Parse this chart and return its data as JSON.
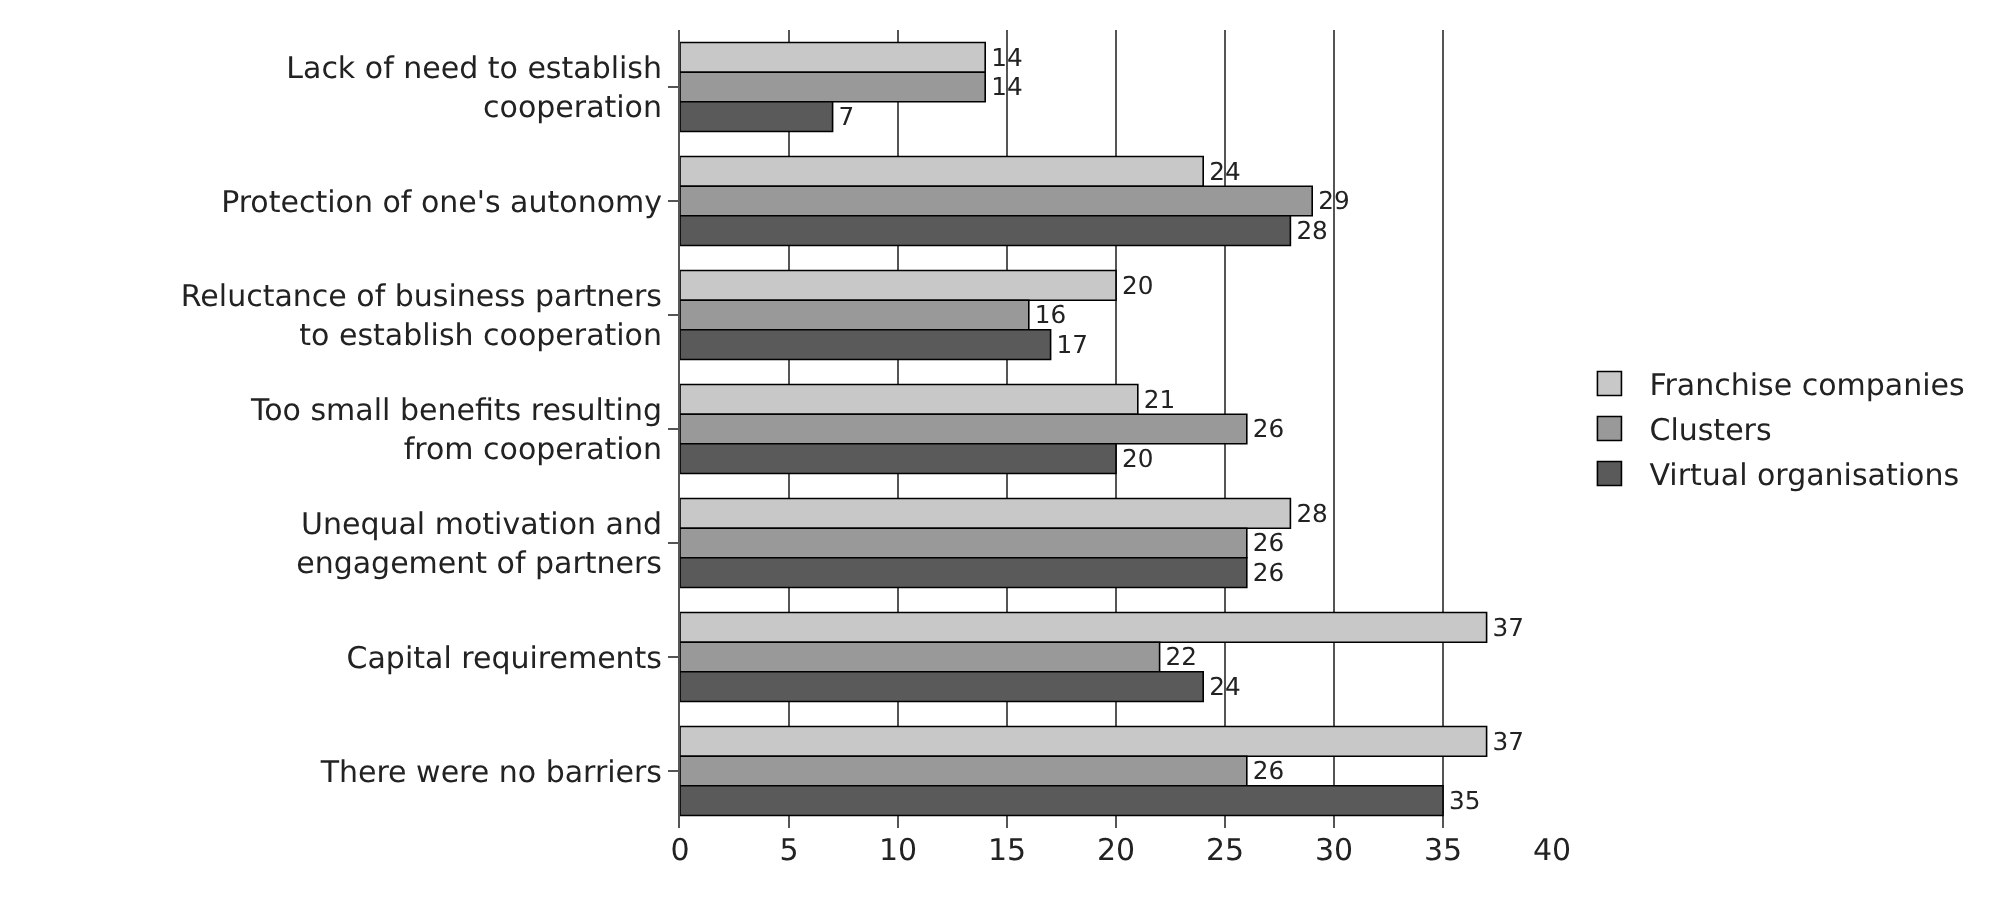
{
  "chart_data": {
    "type": "bar",
    "orientation": "horizontal",
    "categories": [
      "Lack of need to establish cooperation",
      "Protection of one's autonomy",
      "Reluctance of business partners to establish cooperation",
      "Too small benefits resulting from cooperation",
      "Unequal motivation and engagement of partners",
      "Capital requirements",
      "There were no barriers"
    ],
    "series": [
      {
        "name": "Franchise companies",
        "color": "#c8c8c8",
        "values": [
          14,
          24,
          20,
          21,
          28,
          37,
          37
        ]
      },
      {
        "name": "Clusters",
        "color": "#999999",
        "values": [
          14,
          29,
          16,
          26,
          26,
          22,
          26
        ]
      },
      {
        "name": "Virtual organisations",
        "color": "#5a5a5a",
        "values": [
          7,
          28,
          17,
          20,
          26,
          24,
          35
        ]
      }
    ],
    "xlim": [
      0,
      40
    ],
    "xticks": [
      0,
      5,
      10,
      15,
      20,
      25,
      30,
      35,
      40
    ],
    "grid": "x",
    "legend": "right",
    "data_labels": true
  }
}
